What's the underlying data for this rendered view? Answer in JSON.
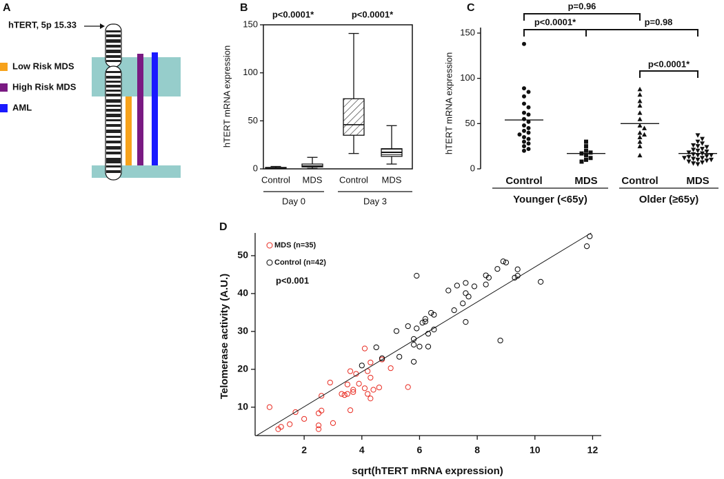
{
  "chart_data": [
    {
      "type": "ideogram",
      "panel": "A",
      "annotation": "hTERT, 5p 15.33",
      "band_color": "#96cdcb",
      "series": [
        {
          "name": "Low Risk MDS",
          "color": "#f7a21b"
        },
        {
          "name": "High Risk MDS",
          "color": "#7a1a82"
        },
        {
          "name": "AML",
          "color": "#1a1aff"
        }
      ]
    },
    {
      "type": "box",
      "panel": "B",
      "ylabel": "hTERT mRNA expression",
      "categories": [
        "Control",
        "MDS",
        "Control",
        "MDS"
      ],
      "groups": [
        "Day 0",
        "Day 3"
      ],
      "annotations": [
        "p<0.0001*",
        "p<0.0001*"
      ],
      "values": [
        {
          "min": 0.5,
          "q1": 1,
          "median": 1.2,
          "q3": 1.5,
          "max": 2.5
        },
        {
          "min": 0.5,
          "q1": 2,
          "median": 3,
          "q3": 5,
          "max": 12
        },
        {
          "min": 16,
          "q1": 35,
          "median": 46,
          "q3": 73,
          "max": 141
        },
        {
          "min": 5,
          "q1": 13,
          "median": 17,
          "q3": 21,
          "max": 45
        }
      ],
      "hatches": [
        "none",
        "none",
        "diagonal",
        "horizontal"
      ],
      "ylim": [
        0,
        150
      ],
      "yticks": [
        0,
        50,
        100,
        150
      ]
    },
    {
      "type": "dot",
      "panel": "C",
      "ylabel": "hTERT mRNA expression",
      "categories": [
        "Control",
        "MDS",
        "Control",
        "MDS"
      ],
      "groups": [
        "Younger (<65y)",
        "Older (≥65y)"
      ],
      "comparisons": [
        "p=0.96",
        "p<0.0001*",
        "p=0.98",
        "p<0.0001*"
      ],
      "markers": [
        "circle",
        "square",
        "triangle-up",
        "triangle-down"
      ],
      "points": [
        [
          138,
          89,
          85,
          80,
          72,
          68,
          62,
          60,
          55,
          52,
          48,
          45,
          42,
          40,
          38,
          35,
          33,
          30,
          28,
          25,
          22,
          20
        ],
        [
          30,
          25,
          20,
          18,
          17,
          15,
          12,
          10,
          8
        ],
        [
          88,
          82,
          75,
          70,
          62,
          55,
          48,
          45,
          40,
          38,
          35,
          30,
          25,
          15
        ],
        [
          37,
          33,
          30,
          28,
          26,
          25,
          24,
          22,
          21,
          20,
          19,
          18,
          17,
          16,
          15,
          15,
          14,
          13,
          12,
          12,
          11,
          10,
          10,
          9,
          8,
          7,
          6,
          5
        ]
      ],
      "means": [
        54,
        17,
        50,
        17
      ],
      "ylim": [
        0,
        150
      ],
      "yticks": [
        0,
        50,
        100,
        150
      ]
    },
    {
      "type": "scatter",
      "panel": "D",
      "xlabel": "sqrt(hTERT mRNA expression)",
      "ylabel": "Telomerase activity (A.U.)",
      "annotation": "p<0.001",
      "series": [
        {
          "name": "MDS (n=35)",
          "color": "#e8281e",
          "x": [
            0.8,
            1.1,
            1.2,
            1.5,
            1.7,
            2.0,
            2.5,
            2.5,
            2.5,
            2.6,
            2.6,
            2.9,
            3.0,
            3.3,
            3.4,
            3.5,
            3.5,
            3.6,
            3.6,
            3.7,
            3.7,
            3.8,
            3.9,
            4.1,
            4.1,
            4.2,
            4.2,
            4.3,
            4.3,
            4.3,
            4.4,
            4.6,
            4.7,
            5.0,
            5.6
          ],
          "y": [
            10,
            4.2,
            4.8,
            5.5,
            8.7,
            6.9,
            4.2,
            5.2,
            8.4,
            9.1,
            13.0,
            16.5,
            5.8,
            13.5,
            13.2,
            13.5,
            16,
            19.5,
            9.2,
            14,
            14.6,
            18.8,
            16.2,
            15.0,
            25.5,
            19.5,
            13.5,
            12.3,
            17.8,
            21.8,
            14.6,
            15.2,
            22.6,
            20.3,
            15.3
          ]
        },
        {
          "name": "Control (n=42)",
          "color": "#000000",
          "x": [
            4.0,
            4.5,
            4.7,
            5.2,
            5.3,
            5.6,
            5.8,
            5.8,
            5.8,
            5.9,
            5.9,
            6.0,
            6.1,
            6.2,
            6.2,
            6.3,
            6.3,
            6.4,
            6.5,
            6.5,
            7.0,
            7.2,
            7.3,
            7.5,
            7.6,
            7.6,
            7.6,
            7.7,
            7.9,
            8.3,
            8.3,
            8.4,
            8.7,
            8.8,
            8.9,
            9.0,
            9.3,
            9.4,
            9.4,
            10.2,
            11.8,
            11.9
          ],
          "y": [
            21.0,
            25.8,
            22.9,
            30.1,
            23.3,
            31.4,
            28,
            26.5,
            22,
            30.8,
            44.7,
            26,
            32.3,
            33.3,
            32.6,
            26,
            29.4,
            34.9,
            30.5,
            34.4,
            40.8,
            35.6,
            42.1,
            37.4,
            42.8,
            40.1,
            32.5,
            39.2,
            41.9,
            42.4,
            44.8,
            44.2,
            46.5,
            27.6,
            48.5,
            48.2,
            44.2,
            44.7,
            46.4,
            43.1,
            52.5,
            55.1
          ]
        }
      ],
      "trendline": {
        "x": [
          0.35,
          11.95
        ],
        "y": [
          2.5,
          56
        ]
      },
      "xlim": [
        0.3,
        12.3
      ],
      "ylim": [
        2.5,
        56
      ],
      "xticks": [
        2,
        4,
        6,
        8,
        10,
        12
      ],
      "yticks": [
        10,
        20,
        30,
        40,
        50
      ]
    }
  ]
}
